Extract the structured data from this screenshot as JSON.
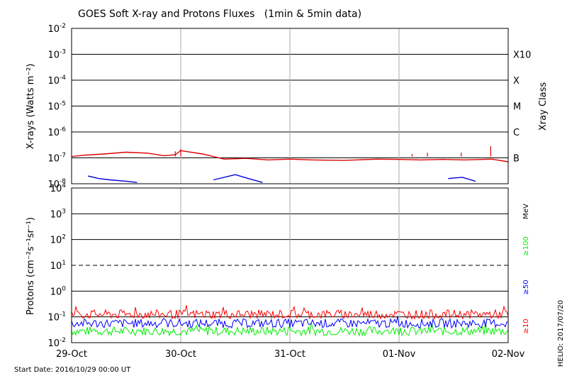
{
  "chart_data": {
    "type": "line",
    "title": "GOES Soft X-ray and Protons Fluxes   (1min & 5min data)",
    "x_ticks": [
      "29-Oct",
      "30-Oct",
      "31-Oct",
      "01-Nov",
      "02-Nov"
    ],
    "start_date": "Start Date: 2016/10/29 00:00 UT",
    "credit": "HELIO: 2017/07/20",
    "xrays": {
      "ylabel": "X-rays (Watts m⁻²)",
      "ylim_exp": [
        -8,
        -2
      ],
      "y_ticks": [
        {
          "base": "10",
          "exp": "-2"
        },
        {
          "base": "10",
          "exp": "-3"
        },
        {
          "base": "10",
          "exp": "-4"
        },
        {
          "base": "10",
          "exp": "-5"
        },
        {
          "base": "10",
          "exp": "-6"
        },
        {
          "base": "10",
          "exp": "-7"
        },
        {
          "base": "10",
          "exp": "-8"
        }
      ],
      "right_axis_label": "Xray Class",
      "classes": [
        {
          "label": "X10",
          "exp": -3
        },
        {
          "label": "X",
          "exp": -4
        },
        {
          "label": "M",
          "exp": -5
        },
        {
          "label": "C",
          "exp": -6
        },
        {
          "label": "B",
          "exp": -7
        }
      ],
      "series": [
        {
          "color": "#dd0000",
          "points": [
            [
              0,
              -6.95
            ],
            [
              0.1,
              -6.9
            ],
            [
              0.3,
              -6.85
            ],
            [
              0.5,
              -6.78
            ],
            [
              0.7,
              -6.82
            ],
            [
              0.85,
              -6.92
            ],
            [
              0.95,
              -6.88
            ],
            [
              1.0,
              -6.72
            ],
            [
              1.2,
              -6.85
            ],
            [
              1.4,
              -7.05
            ],
            [
              1.6,
              -7.02
            ],
            [
              1.8,
              -7.08
            ],
            [
              2.0,
              -7.05
            ],
            [
              2.2,
              -7.08
            ],
            [
              2.5,
              -7.1
            ],
            [
              2.8,
              -7.05
            ],
            [
              3.0,
              -7.06
            ],
            [
              3.2,
              -7.08
            ],
            [
              3.4,
              -7.06
            ],
            [
              3.6,
              -7.08
            ],
            [
              3.85,
              -7.05
            ],
            [
              4.0,
              -7.15
            ]
          ]
        },
        {
          "color": "#0000dd",
          "points": [
            [
              0.15,
              -7.7
            ],
            [
              0.25,
              -7.8
            ],
            [
              0.35,
              -7.85
            ],
            [
              0.5,
              -7.9
            ],
            [
              0.6,
              -7.95
            ],
            [
              1.3,
              -7.85
            ],
            [
              1.5,
              -7.65
            ],
            [
              1.62,
              -7.8
            ],
            [
              1.75,
              -7.95
            ],
            [
              2.35,
              -7.98
            ],
            [
              2.7,
              -7.95
            ],
            [
              3.45,
              -7.8
            ],
            [
              3.58,
              -7.75
            ],
            [
              3.7,
              -7.9
            ]
          ]
        }
      ],
      "spikes": [
        [
          0.95,
          -6.75
        ],
        [
          1.0,
          -6.65
        ],
        [
          3.12,
          -6.85
        ],
        [
          3.26,
          -6.8
        ],
        [
          3.57,
          -6.8
        ],
        [
          3.84,
          -6.55
        ]
      ]
    },
    "protons": {
      "ylabel": "Protons (cm⁻²s⁻¹sr⁻¹)",
      "ylim_exp": [
        -2,
        4
      ],
      "y_ticks": [
        {
          "base": "10",
          "exp": "4"
        },
        {
          "base": "10",
          "exp": "3"
        },
        {
          "base": "10",
          "exp": "2"
        },
        {
          "base": "10",
          "exp": "1"
        },
        {
          "base": "10",
          "exp": "0"
        },
        {
          "base": "10",
          "exp": "-1"
        },
        {
          "base": "10",
          "exp": "-2"
        }
      ],
      "unit_label": "MeV",
      "threshold_exp": 1,
      "series": [
        {
          "name": "≥10",
          "color": "#ff0000",
          "level_exp": -0.9
        },
        {
          "name": "≥50",
          "color": "#0000ff",
          "level_exp": -1.25
        },
        {
          "name": "≥100",
          "color": "#00ee00",
          "level_exp": -1.55
        }
      ]
    },
    "grid": true
  },
  "colors": {
    "frame": "#000000",
    "day_line": "#aaaaaa"
  }
}
